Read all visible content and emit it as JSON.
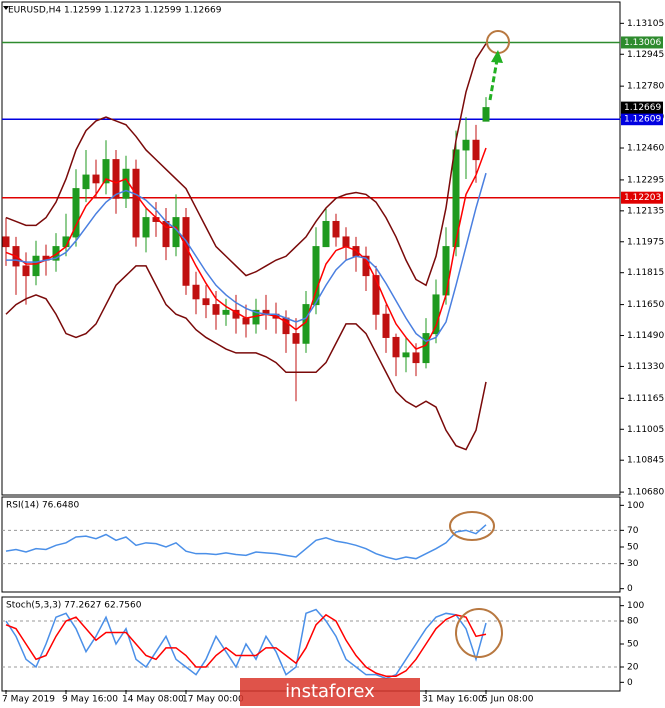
{
  "chart_data": [
    {
      "type": "candlestick",
      "title": "EURUSD,H4 1.12599 1.12723 1.12599 1.12669",
      "categories": [
        "7 May 2019",
        null,
        null,
        null,
        null,
        null,
        "9 May 16:00",
        null,
        null,
        null,
        null,
        null,
        "14 May 08:00",
        null,
        null,
        null,
        null,
        null,
        "17 May 00:00",
        null,
        null,
        null,
        null,
        null,
        null,
        null,
        null,
        null,
        null,
        null,
        null,
        null,
        null,
        null,
        null,
        null,
        null,
        null,
        null,
        null,
        null,
        null,
        "31 May 16:00",
        null,
        null,
        null,
        null,
        null,
        "5 Jun 08:00"
      ],
      "open": [
        1.12,
        1.1195,
        1.1185,
        1.118,
        1.119,
        1.1188,
        1.1195,
        1.12,
        1.1225,
        1.1232,
        1.1228,
        1.124,
        1.122,
        1.1235,
        1.12,
        1.121,
        1.1208,
        1.1195,
        1.121,
        1.1175,
        1.1168,
        1.1165,
        1.116,
        1.1162,
        1.1158,
        1.1155,
        1.1162,
        1.116,
        1.1158,
        1.115,
        1.1145,
        1.1165,
        1.1195,
        1.1208,
        1.12,
        1.1195,
        1.119,
        1.118,
        1.116,
        1.1148,
        1.1138,
        1.114,
        1.1135,
        1.115,
        1.117,
        1.1195,
        1.1245,
        1.125,
        1.12599
      ],
      "high": [
        1.121,
        1.12,
        1.1192,
        1.1198,
        1.1196,
        1.1202,
        1.1212,
        1.1235,
        1.1245,
        1.124,
        1.125,
        1.1245,
        1.1242,
        1.124,
        1.1215,
        1.1218,
        1.1215,
        1.1222,
        1.1215,
        1.1182,
        1.1175,
        1.1172,
        1.1168,
        1.117,
        1.1165,
        1.1168,
        1.117,
        1.1166,
        1.1162,
        1.1158,
        1.1172,
        1.1205,
        1.1215,
        1.1212,
        1.1205,
        1.12,
        1.1195,
        1.1185,
        1.1165,
        1.115,
        1.1148,
        1.1145,
        1.1158,
        1.1178,
        1.1205,
        1.1255,
        1.1262,
        1.1258,
        1.12723
      ],
      "low": [
        1.1185,
        1.117,
        1.1165,
        1.1175,
        1.118,
        1.1182,
        1.119,
        1.1195,
        1.1218,
        1.122,
        1.1222,
        1.1212,
        1.1215,
        1.1195,
        1.1192,
        1.12,
        1.1188,
        1.119,
        1.117,
        1.116,
        1.1158,
        1.1152,
        1.1154,
        1.115,
        1.1148,
        1.115,
        1.1152,
        1.115,
        1.114,
        1.1115,
        1.114,
        1.116,
        1.1195,
        1.1195,
        1.1188,
        1.1182,
        1.1172,
        1.1152,
        1.114,
        1.1128,
        1.113,
        1.1128,
        1.1132,
        1.1145,
        1.1165,
        1.119,
        1.123,
        1.1228,
        1.12599
      ],
      "close": [
        1.1195,
        1.1185,
        1.118,
        1.119,
        1.1188,
        1.1195,
        1.12,
        1.1225,
        1.1232,
        1.1228,
        1.124,
        1.122,
        1.1235,
        1.12,
        1.121,
        1.1208,
        1.1195,
        1.121,
        1.1175,
        1.1168,
        1.1165,
        1.116,
        1.1162,
        1.1158,
        1.1155,
        1.1162,
        1.116,
        1.1158,
        1.115,
        1.1145,
        1.1165,
        1.1195,
        1.1208,
        1.12,
        1.1195,
        1.119,
        1.118,
        1.116,
        1.1148,
        1.1138,
        1.114,
        1.1135,
        1.115,
        1.117,
        1.1195,
        1.1245,
        1.125,
        1.124,
        1.12669
      ],
      "up_color": "#1f9a1f",
      "down_color": "#c01010",
      "series": [
        {
          "color": "#ff0000",
          "values": [
            1.1192,
            1.119,
            1.1186,
            1.1186,
            1.1188,
            1.1191,
            1.1195,
            1.1206,
            1.1216,
            1.1222,
            1.123,
            1.1228,
            1.123,
            1.1222,
            1.1215,
            1.121,
            1.1205,
            1.1205,
            1.1195,
            1.1185,
            1.1176,
            1.1168,
            1.1164,
            1.1161,
            1.1158,
            1.1159,
            1.116,
            1.1159,
            1.1156,
            1.1152,
            1.1156,
            1.1172,
            1.1186,
            1.1193,
            1.1195,
            1.1193,
            1.1188,
            1.1178,
            1.1166,
            1.1155,
            1.1148,
            1.1142,
            1.1144,
            1.1154,
            1.117,
            1.1198,
            1.1222,
            1.1232,
            1.1246
          ]
        },
        {
          "color": "#4a7fe0",
          "values": [
            1.1188,
            1.1188,
            1.1187,
            1.1187,
            1.1188,
            1.1189,
            1.1192,
            1.1198,
            1.1205,
            1.1212,
            1.1218,
            1.1222,
            1.1224,
            1.1222,
            1.1219,
            1.1214,
            1.1208,
            1.1204,
            1.1198,
            1.119,
            1.1182,
            1.1175,
            1.117,
            1.1166,
            1.1163,
            1.1161,
            1.116,
            1.116,
            1.1158,
            1.1156,
            1.1158,
            1.1166,
            1.1175,
            1.1183,
            1.1188,
            1.119,
            1.1189,
            1.1184,
            1.1176,
            1.1167,
            1.1158,
            1.115,
            1.1146,
            1.1148,
            1.1156,
            1.1175,
            1.1195,
            1.1215,
            1.1233
          ]
        },
        {
          "color": "#7a0a0a",
          "values": [
            1.121,
            1.1208,
            1.1206,
            1.1206,
            1.121,
            1.1218,
            1.123,
            1.1245,
            1.1255,
            1.126,
            1.1262,
            1.126,
            1.1258,
            1.1252,
            1.1245,
            1.124,
            1.1235,
            1.123,
            1.1225,
            1.1215,
            1.1205,
            1.1195,
            1.119,
            1.1185,
            1.118,
            1.1182,
            1.1185,
            1.1188,
            1.119,
            1.1195,
            1.12,
            1.1208,
            1.1215,
            1.122,
            1.1222,
            1.1223,
            1.1222,
            1.1218,
            1.121,
            1.12,
            1.1188,
            1.1178,
            1.1175,
            1.119,
            1.1215,
            1.125,
            1.1275,
            1.1292,
            1.13
          ]
        },
        {
          "color": "#7a0a0a",
          "values": [
            1.116,
            1.1165,
            1.1168,
            1.117,
            1.1168,
            1.116,
            1.115,
            1.1148,
            1.115,
            1.1155,
            1.1165,
            1.1175,
            1.118,
            1.1185,
            1.1185,
            1.1175,
            1.1165,
            1.116,
            1.1158,
            1.1152,
            1.1148,
            1.1145,
            1.1142,
            1.114,
            1.114,
            1.114,
            1.1138,
            1.1135,
            1.113,
            1.113,
            1.113,
            1.113,
            1.1135,
            1.1145,
            1.1155,
            1.1155,
            1.115,
            1.114,
            1.113,
            1.112,
            1.1115,
            1.1112,
            1.1115,
            1.1112,
            1.11,
            1.1092,
            1.109,
            1.11,
            1.1125
          ]
        }
      ],
      "ylim": [
        1.10665,
        1.13205
      ],
      "yticks": [
        1.13105,
        1.12945,
        {
          "value": 1.1278,
          "label": "1.12780"
        },
        {
          "value": 1.1262,
          "label": "1.12620"
        },
        {
          "value": 1.1246,
          "label": "1.12460"
        },
        1.12295,
        1.12135,
        1.11975,
        1.11815,
        {
          "value": 1.1165,
          "label": "1.11650"
        },
        {
          "value": 1.1149,
          "label": "1.11490"
        },
        {
          "value": 1.1133,
          "label": "1.11330"
        },
        1.11165,
        1.11005,
        1.10845,
        {
          "value": 1.1068,
          "label": "1.10680"
        }
      ],
      "levels": [
        {
          "value": 1.13006,
          "color": "#2e8b2e"
        },
        {
          "value": 1.12609,
          "color": "#0000e0"
        },
        {
          "value": 1.12203,
          "color": "#e00000"
        }
      ]
    },
    {
      "type": "line",
      "title": "RSI(14) 76.6480",
      "series": [
        {
          "color": "#4a8fe8",
          "values": [
            45,
            47,
            44,
            48,
            47,
            52,
            55,
            62,
            63,
            60,
            65,
            58,
            62,
            52,
            55,
            54,
            50,
            55,
            45,
            42,
            42,
            41,
            43,
            41,
            40,
            44,
            43,
            42,
            40,
            38,
            48,
            58,
            61,
            57,
            55,
            52,
            48,
            42,
            38,
            35,
            38,
            36,
            42,
            48,
            55,
            68,
            70,
            66,
            76.648
          ]
        }
      ],
      "ylim": [
        -4,
        110
      ],
      "yticks": [
        100,
        70,
        50,
        30,
        0
      ],
      "levels": [
        70,
        30
      ]
    },
    {
      "type": "line",
      "title": "Stoch(5,3,3) 77.2627 62.7560",
      "series": [
        {
          "color": "#4a8fe8",
          "values": [
            80,
            60,
            30,
            20,
            50,
            85,
            90,
            70,
            40,
            60,
            85,
            50,
            70,
            30,
            20,
            40,
            60,
            30,
            20,
            10,
            30,
            60,
            40,
            20,
            50,
            30,
            60,
            40,
            10,
            20,
            90,
            95,
            80,
            60,
            30,
            20,
            10,
            10,
            5,
            10,
            30,
            50,
            70,
            85,
            90,
            88,
            70,
            30,
            77.2627
          ]
        },
        {
          "color": "#ff0000",
          "values": [
            75,
            70,
            50,
            30,
            35,
            60,
            80,
            85,
            70,
            55,
            65,
            65,
            65,
            50,
            35,
            30,
            45,
            45,
            35,
            20,
            20,
            35,
            45,
            35,
            35,
            35,
            45,
            45,
            35,
            25,
            45,
            75,
            88,
            80,
            55,
            35,
            20,
            12,
            8,
            8,
            15,
            30,
            50,
            70,
            82,
            88,
            85,
            60,
            62.756
          ]
        }
      ],
      "ylim": [
        -10,
        110
      ],
      "yticks": [
        100,
        80,
        50,
        20,
        0
      ],
      "levels": [
        80,
        20
      ]
    }
  ],
  "watermark": "instaforex"
}
